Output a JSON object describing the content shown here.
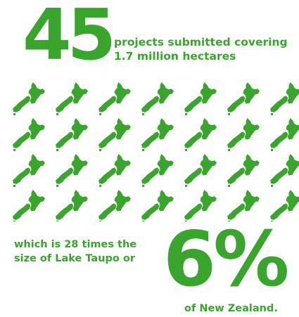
{
  "accent_color": "#3aa52d",
  "stat": {
    "number": "45",
    "line1": "projects submitted covering",
    "line2": "1.7 million hectares"
  },
  "icon_grid": {
    "icon": "new-zealand-map-icon",
    "rows": 4,
    "columns": 7
  },
  "comparison": {
    "line1": "which is 28 times the",
    "line2": "size of Lake Taupo or",
    "percent": "6%",
    "tail": "of New Zealand."
  }
}
